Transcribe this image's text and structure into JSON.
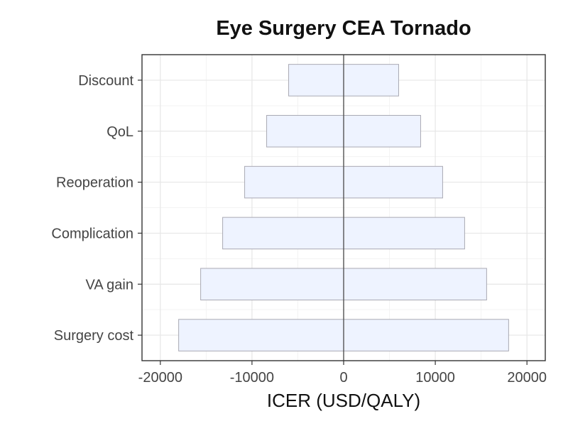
{
  "chart_data": {
    "type": "bar",
    "orientation": "horizontal",
    "variant": "tornado",
    "title": "Eye Surgery CEA Tornado",
    "xlabel": "ICER (USD/QALY)",
    "ylabel": "",
    "xlim": [
      -22000,
      22000
    ],
    "x_ticks": [
      -20000,
      -10000,
      0,
      10000,
      20000
    ],
    "x_tick_labels": [
      "-20000",
      "-10000",
      "0",
      "10000",
      "20000"
    ],
    "categories": [
      "Discount",
      "QoL",
      "Reoperation",
      "Complication",
      "VA gain",
      "Surgery cost"
    ],
    "series": [
      {
        "low": [
          -6000,
          -8400,
          -10800,
          -13200,
          -15600,
          -18000
        ],
        "high": [
          6000,
          8400,
          10800,
          13200,
          15600,
          18000
        ]
      }
    ],
    "reference_line_x": 0,
    "grid": true,
    "legend": "none",
    "colors": {
      "bar_fill": "#eef3ff",
      "bar_stroke": "#a9a9b3",
      "panel_border": "#333333",
      "grid_major": "#e6e6e6",
      "grid_minor": "#f3f3f3",
      "zero_line": "#555555",
      "tick_text": "#444444",
      "title_text": "#111111"
    }
  }
}
